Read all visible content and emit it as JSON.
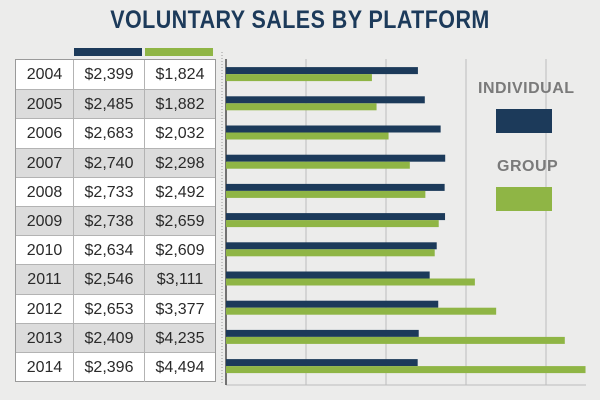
{
  "chart_data": {
    "type": "bar",
    "orientation": "horizontal",
    "title": "VOLUNTARY SALES BY PLATFORM",
    "categories": [
      "2004",
      "2005",
      "2006",
      "2007",
      "2008",
      "2009",
      "2010",
      "2011",
      "2012",
      "2013",
      "2014"
    ],
    "series": [
      {
        "name": "INDIVIDUAL",
        "color": "#1c3a5a",
        "values": [
          2399,
          2485,
          2683,
          2740,
          2733,
          2738,
          2634,
          2546,
          2653,
          2409,
          2396
        ],
        "labels": [
          "$2,399",
          "$2,485",
          "$2,683",
          "$2,740",
          "$2,733",
          "$2,738",
          "$2,634",
          "$2,546",
          "$2,653",
          "$2,409",
          "$2,396"
        ]
      },
      {
        "name": "GROUP",
        "color": "#8fb545",
        "values": [
          1824,
          1882,
          2032,
          2298,
          2492,
          2659,
          2609,
          3111,
          3377,
          4235,
          4494
        ],
        "labels": [
          "$1,824",
          "$1,882",
          "$2,032",
          "$2,298",
          "$2,492",
          "$2,659",
          "$2,609",
          "$3,111",
          "$3,377",
          "$4,235",
          "$4,494"
        ]
      }
    ],
    "xlim": [
      0,
      4500
    ],
    "grid": true,
    "legend": "right"
  }
}
